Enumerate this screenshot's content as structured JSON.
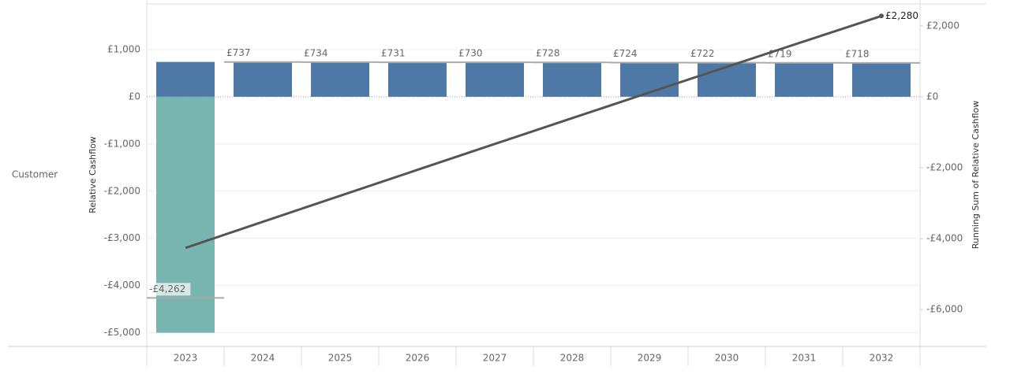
{
  "chart_data": {
    "type": "bar",
    "row_label": "Customer",
    "ylabel": "Relative Cashflow",
    "y2label": "Running Sum of Relative Cashflow",
    "categories": [
      "2023",
      "2024",
      "2025",
      "2026",
      "2027",
      "2028",
      "2029",
      "2030",
      "2031",
      "2032"
    ],
    "stacked": true,
    "series": [
      {
        "color": "#4e79a7",
        "values": [
          738,
          737,
          734,
          731,
          730,
          728,
          724,
          722,
          719,
          718
        ]
      },
      {
        "color": "#79b5b0",
        "values": [
          -5000,
          0,
          0,
          0,
          0,
          0,
          0,
          0,
          0,
          0
        ]
      },
      {
        "type": "line",
        "axis": "y2",
        "color": "#555555",
        "values": [
          -4262,
          -3525,
          -2791,
          -2060,
          -1330,
          -602,
          122,
          844,
          1563,
          2280
        ],
        "value_labels": [
          null,
          null,
          null,
          null,
          null,
          null,
          null,
          null,
          null,
          "£2,280"
        ]
      }
    ],
    "totals": {
      "color": "#aaaaaa",
      "values": [
        -4262,
        737,
        734,
        731,
        730,
        728,
        724,
        722,
        719,
        718
      ],
      "value_labels": [
        "-£4,262",
        "£737",
        "£734",
        "£731",
        "£730",
        "£728",
        "£724",
        "£722",
        "£719",
        "£718"
      ]
    },
    "ylim": [
      -5290,
      2050
    ],
    "yticks": [
      {
        "value": 1000,
        "label": "£1,000"
      },
      {
        "value": 0,
        "label": "£0"
      },
      {
        "value": -1000,
        "label": "-£1,000"
      },
      {
        "value": -2000,
        "label": "-£2,000"
      },
      {
        "value": -3000,
        "label": "-£3,000"
      },
      {
        "value": -4000,
        "label": "-£4,000"
      },
      {
        "value": -5000,
        "label": "-£5,000"
      }
    ],
    "y2lim": [
      -7040,
      2730
    ],
    "y2ticks": [
      {
        "value": 2000,
        "label": "£2,000"
      },
      {
        "value": 0,
        "label": "£0"
      },
      {
        "value": -2000,
        "label": "-£2,000"
      },
      {
        "value": -4000,
        "label": "-£4,000"
      },
      {
        "value": -6000,
        "label": "-£6,000"
      }
    ],
    "grid": true
  }
}
